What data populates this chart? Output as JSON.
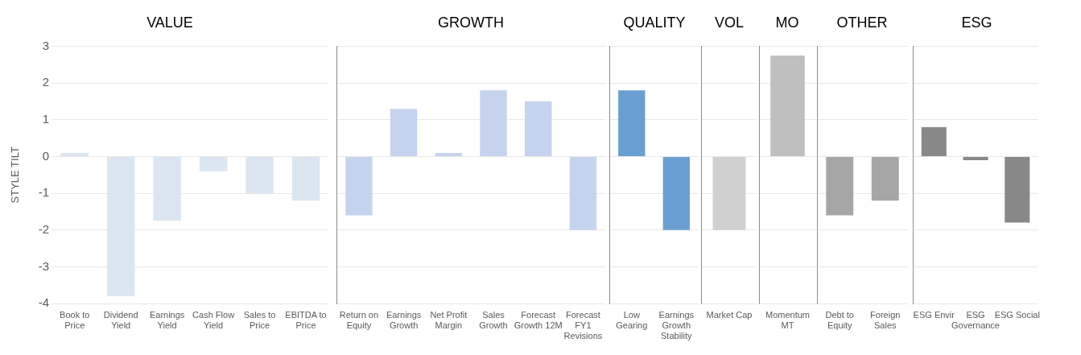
{
  "chart_data": [
    {
      "type": "bar",
      "title": "VALUE",
      "ylabel": "STYLE TILT",
      "categories": [
        "Book to Price",
        "Dividend Yield",
        "Earnings Yield",
        "Cash Flow Yield",
        "Sales to Price",
        "EBITDA to Price"
      ],
      "values": [
        0.1,
        -3.8,
        -1.75,
        -0.4,
        -1.0,
        -1.2
      ],
      "color": "#dce6f0",
      "ylim": [
        -4,
        3
      ],
      "yticks": [
        -4,
        -3,
        -2,
        -1,
        0,
        1,
        2,
        3
      ],
      "grid": "y"
    },
    {
      "type": "bar",
      "title": "GROWTH",
      "categories": [
        "Return on Equity",
        "Earnings Growth",
        "Net Profit Margin",
        "Sales Growth",
        "Forecast Growth 12M",
        "Forecast FY1 Revisions"
      ],
      "values": [
        -1.6,
        1.3,
        0.1,
        1.8,
        1.5,
        -2.0
      ],
      "color": "#c5d3ee",
      "ylim": [
        -4,
        3
      ],
      "yticks": [
        -4,
        -3,
        -2,
        -1,
        0,
        1,
        2,
        3
      ],
      "grid": "y",
      "tick_labels": "x"
    },
    {
      "type": "bar",
      "title": "QUALITY",
      "categories": [
        "Low Gearing",
        "Earnings Growth Stability"
      ],
      "values": [
        1.8,
        -2.0
      ],
      "color": "#6a9fd2",
      "ylim": [
        -4,
        3
      ],
      "yticks": [
        -4,
        -3,
        -2,
        -1,
        0,
        1,
        2,
        3
      ],
      "grid": "y",
      "tick_labels": "x"
    },
    {
      "type": "bar",
      "title": "VOL",
      "categories": [
        "Market Cap"
      ],
      "values": [
        -2.0
      ],
      "color": "#d0d0d0",
      "ylim": [
        -4,
        3
      ],
      "yticks": [
        -4,
        -3,
        -2,
        -1,
        0,
        1,
        2,
        3
      ],
      "grid": "y",
      "tick_labels": "x"
    },
    {
      "type": "bar",
      "title": "MO",
      "categories": [
        "Momentum MT"
      ],
      "values": [
        2.75
      ],
      "color": "#bfbfbf",
      "ylim": [
        -4,
        3
      ],
      "yticks": [
        -4,
        -3,
        -2,
        -1,
        0,
        1,
        2,
        3
      ],
      "grid": "y",
      "tick_labels": "x"
    },
    {
      "type": "bar",
      "title": "OTHER",
      "categories": [
        "Debt to Equity",
        "Foreign Sales"
      ],
      "values": [
        -1.6,
        -1.2
      ],
      "color": "#a6a6a6",
      "ylim": [
        -4,
        3
      ],
      "yticks": [
        -4,
        -3,
        -2,
        -1,
        0,
        1,
        2,
        3
      ],
      "grid": "y",
      "tick_labels": "x"
    },
    {
      "type": "bar",
      "title": "ESG",
      "categories": [
        "ESG Envir",
        "ESG Governance",
        "ESG Social"
      ],
      "values": [
        0.8,
        -0.1,
        -1.8
      ],
      "color": "#888888",
      "ylim": [
        -4,
        3
      ],
      "yticks": [
        -4,
        -3,
        -2,
        -1,
        0,
        1,
        2,
        3
      ],
      "grid": "y",
      "tick_labels": "x"
    }
  ]
}
